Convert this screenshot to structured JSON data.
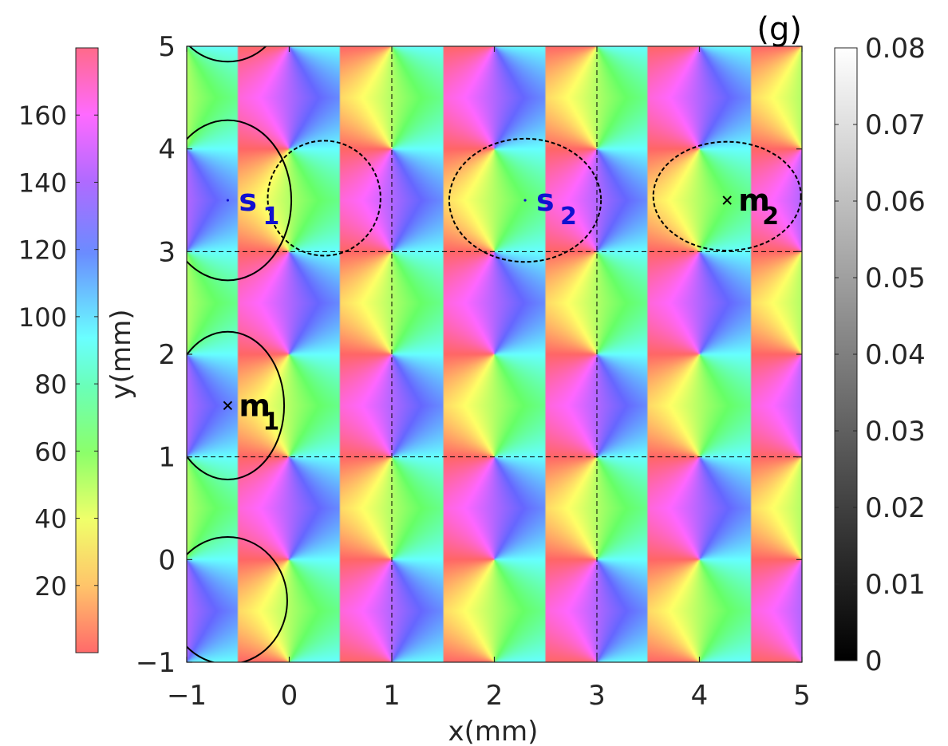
{
  "chart_data": {
    "type": "heatmap",
    "panel_label": "(g)",
    "xlabel": "x(mm)",
    "ylabel": "y(mm)",
    "xlim": [
      -1,
      5
    ],
    "ylim": [
      -1,
      5
    ],
    "x_ticks": [
      -1,
      0,
      1,
      2,
      3,
      4,
      5
    ],
    "y_ticks": [
      -1,
      0,
      1,
      2,
      3,
      4,
      5
    ],
    "x_tick_labels": [
      "−1",
      "0",
      "1",
      "2",
      "3",
      "4",
      "5"
    ],
    "y_tick_labels": [
      "−1",
      "0",
      "1",
      "2",
      "3",
      "4",
      "5"
    ],
    "field": {
      "description_of_pattern": "angle field",
      "period_x": 2,
      "period_y": 2,
      "singularities_x": [
        -0.5,
        0.5,
        1.5,
        2.5,
        3.5,
        4.5
      ],
      "singularities_y": [
        -0.5,
        0.5,
        1.5,
        2.5,
        3.5,
        4.5
      ],
      "value_range": [
        0,
        180
      ]
    },
    "dashed_grid_lines": {
      "x": [
        1,
        3
      ],
      "y": [
        1,
        3
      ]
    },
    "markers": [
      {
        "label_main": "s",
        "label_sub": "1",
        "x": -0.6,
        "y": 3.5,
        "symbol": "dot",
        "color": "#1010d0"
      },
      {
        "label_main": "s",
        "label_sub": "2",
        "x": 2.3,
        "y": 3.5,
        "symbol": "dot",
        "color": "#1010d0"
      },
      {
        "label_main": "m",
        "label_sub": "1",
        "x": -0.6,
        "y": 1.5,
        "symbol": "x",
        "color": "#000000"
      },
      {
        "label_main": "m",
        "label_sub": "2",
        "x": 4.27,
        "y": 3.5,
        "symbol": "x",
        "color": "#000000"
      }
    ],
    "solid_contours": [
      {
        "cx": -0.6,
        "cy": 3.5,
        "rx": 0.62,
        "ry": 0.78
      },
      {
        "cx": -0.6,
        "cy": 1.5,
        "rx": 0.55,
        "ry": 0.72
      },
      {
        "cx": -0.6,
        "cy": -0.4,
        "rx": 0.58,
        "ry": 0.62
      },
      {
        "cx": -0.6,
        "cy": 5.35,
        "rx": 0.52,
        "ry": 0.5
      }
    ],
    "dashed_contours": [
      {
        "cx": 0.34,
        "cy": 3.52,
        "rx": 0.55,
        "ry": 0.56
      },
      {
        "cx": 2.3,
        "cy": 3.5,
        "rx": 0.74,
        "ry": 0.6
      },
      {
        "cx": 4.27,
        "cy": 3.54,
        "rx": 0.72,
        "ry": 0.53
      }
    ],
    "colorbar_left": {
      "colormap": "hue",
      "range": [
        0,
        180
      ],
      "ticks": [
        20,
        40,
        60,
        80,
        100,
        120,
        140,
        160
      ],
      "tick_labels": [
        "20",
        "40",
        "60",
        "80",
        "100",
        "120",
        "140",
        "160"
      ]
    },
    "colorbar_right": {
      "colormap": "gray",
      "range": [
        0,
        0.08
      ],
      "ticks": [
        0,
        0.01,
        0.02,
        0.03,
        0.04,
        0.05,
        0.06,
        0.07,
        0.08
      ],
      "tick_labels": [
        "0",
        "0.01",
        "0.02",
        "0.03",
        "0.04",
        "0.05",
        "0.06",
        "0.07",
        "0.08"
      ]
    }
  }
}
